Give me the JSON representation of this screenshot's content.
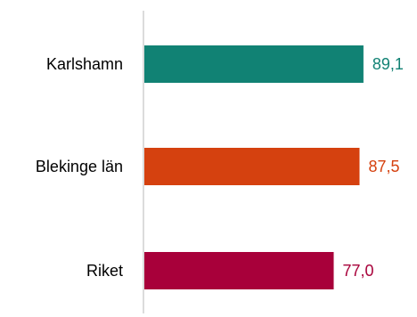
{
  "chart_data": {
    "type": "bar",
    "orientation": "horizontal",
    "categories": [
      "Karlshamn",
      "Blekinge län",
      "Riket"
    ],
    "values": [
      89.1,
      87.5,
      77.0
    ],
    "value_labels": [
      "89,1",
      "87,5",
      "77,0"
    ],
    "colors": [
      "#118274",
      "#d5410f",
      "#a8003a"
    ],
    "axis_color": "#d0d0d0",
    "xlim": [
      0,
      100
    ],
    "grid": false,
    "legend": "none"
  }
}
